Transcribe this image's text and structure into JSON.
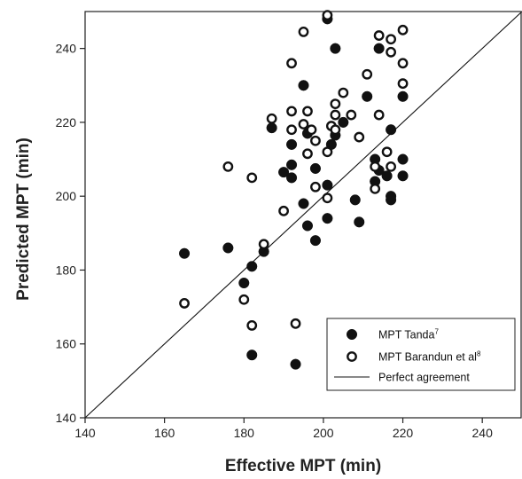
{
  "chart_data": {
    "type": "scatter",
    "title": "",
    "xlabel": "Effective MPT (min)",
    "ylabel": "Predicted MPT (min)",
    "xlim": [
      140,
      250
    ],
    "ylim": [
      140,
      250
    ],
    "xticks": [
      140,
      160,
      180,
      200,
      220,
      240
    ],
    "yticks": [
      140,
      160,
      180,
      200,
      220,
      240
    ],
    "grid": false,
    "legend_position": "bottom-right",
    "series": [
      {
        "name": "MPT Tanda",
        "superscript": "7",
        "marker": "filled-circle",
        "color": "#111111",
        "points": [
          [
            165,
            184.5
          ],
          [
            176,
            186
          ],
          [
            180,
            176.5
          ],
          [
            182,
            181
          ],
          [
            182,
            157
          ],
          [
            185,
            185
          ],
          [
            187,
            218.5
          ],
          [
            190,
            206.5
          ],
          [
            192,
            205
          ],
          [
            192,
            208.5
          ],
          [
            192,
            214
          ],
          [
            193,
            154.5
          ],
          [
            195,
            198
          ],
          [
            195,
            230
          ],
          [
            196,
            192
          ],
          [
            196,
            217
          ],
          [
            198,
            188
          ],
          [
            198,
            207.5
          ],
          [
            201,
            194
          ],
          [
            201,
            203
          ],
          [
            201,
            248
          ],
          [
            202,
            214
          ],
          [
            203,
            216.5
          ],
          [
            203,
            240
          ],
          [
            205,
            220
          ],
          [
            208,
            199
          ],
          [
            209,
            193
          ],
          [
            211,
            227
          ],
          [
            213,
            210
          ],
          [
            213,
            204
          ],
          [
            214,
            207
          ],
          [
            214,
            240
          ],
          [
            216,
            205.5
          ],
          [
            217,
            218
          ],
          [
            217,
            200
          ],
          [
            217,
            199
          ],
          [
            220,
            227
          ],
          [
            220,
            210
          ],
          [
            220,
            205.5
          ]
        ]
      },
      {
        "name": "MPT Barandun et al",
        "superscript": "8",
        "marker": "open-circle",
        "color": "#111111",
        "points": [
          [
            165,
            171
          ],
          [
            176,
            208
          ],
          [
            180,
            172
          ],
          [
            182,
            205
          ],
          [
            182,
            165
          ],
          [
            185,
            187
          ],
          [
            187,
            221
          ],
          [
            190,
            196
          ],
          [
            192,
            236
          ],
          [
            192,
            223
          ],
          [
            192,
            218
          ],
          [
            193,
            165.5
          ],
          [
            195,
            244.5
          ],
          [
            195,
            219.5
          ],
          [
            196,
            223
          ],
          [
            196,
            211.5
          ],
          [
            197,
            218
          ],
          [
            198,
            215
          ],
          [
            198,
            202.5
          ],
          [
            201,
            212
          ],
          [
            201,
            199.5
          ],
          [
            201,
            249
          ],
          [
            202,
            219
          ],
          [
            203,
            225
          ],
          [
            203,
            222
          ],
          [
            203,
            218
          ],
          [
            205,
            228
          ],
          [
            207,
            222
          ],
          [
            209,
            216
          ],
          [
            211,
            233
          ],
          [
            213,
            208
          ],
          [
            213,
            202
          ],
          [
            214,
            243.5
          ],
          [
            214,
            222
          ],
          [
            216,
            212
          ],
          [
            217,
            242.5
          ],
          [
            217,
            239
          ],
          [
            217,
            208
          ],
          [
            220,
            245
          ],
          [
            220,
            236
          ],
          [
            220,
            230.5
          ]
        ]
      },
      {
        "name": "Perfect agreement",
        "marker": "line",
        "color": "#111111",
        "points": [
          [
            140,
            140
          ],
          [
            250,
            250
          ]
        ]
      }
    ]
  }
}
